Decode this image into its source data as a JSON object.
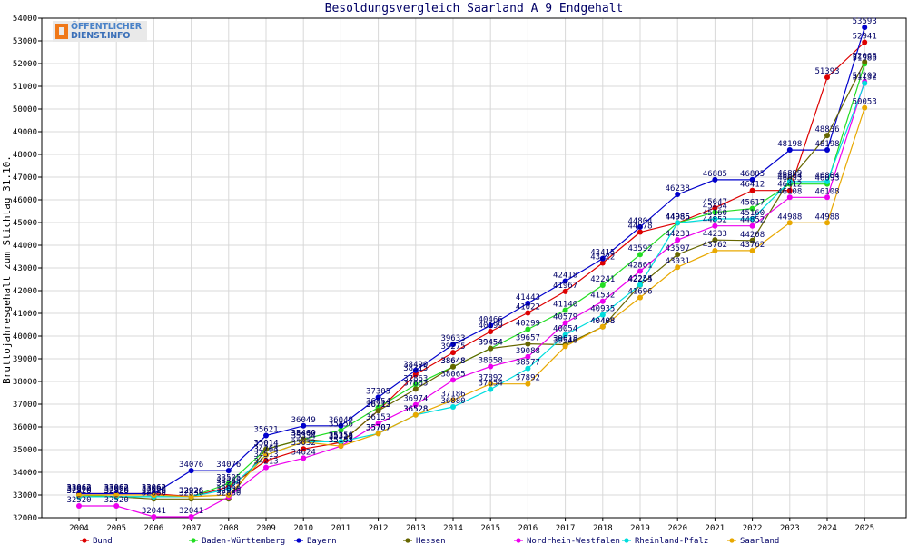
{
  "logo": {
    "line1": "ÖFFENTLICHER",
    "line2": "DIENST.INFO"
  },
  "chart_data": {
    "type": "line",
    "title": "Besoldungsvergleich Saarland A 9 Endgehalt",
    "xlabel": "",
    "ylabel": "Bruttojahresgehalt zum Stichtag 31.10.",
    "ylim": [
      32000,
      54000
    ],
    "ystep": 1000,
    "grid": true,
    "legend_position": "bottom",
    "x": [
      "2004",
      "2005",
      "2006",
      "2007",
      "2008",
      "2009",
      "2010",
      "2011",
      "2012",
      "2013",
      "2014",
      "2015",
      "2016",
      "2017",
      "2018",
      "2019",
      "2020",
      "2021",
      "2022",
      "2023",
      "2024",
      "2025"
    ],
    "series": [
      {
        "name": "Bund",
        "color": "#dd0000",
        "values": [
          33062,
          33062,
          33062,
          32926,
          33365,
          34513,
          35032,
          35313,
          36713,
          38315,
          39275,
          40199,
          41022,
          41967,
          43222,
          44578,
          44986,
          45647,
          46412,
          46412,
          51393,
          52941
        ]
      },
      {
        "name": "Baden-Württemberg",
        "color": "#22dd22",
        "values": [
          33000,
          32926,
          32926,
          32926,
          33505,
          35014,
          35460,
          35856,
          36854,
          37863,
          38648,
          39454,
          40299,
          41140,
          42241,
          43592,
          44986,
          45454,
          45617,
          46693,
          46693,
          51986
        ]
      },
      {
        "name": "Bayern",
        "color": "#0000cc",
        "values": [
          33062,
          33062,
          33062,
          34076,
          34076,
          35621,
          36049,
          36049,
          37305,
          38490,
          39633,
          40466,
          41443,
          42418,
          43415,
          44804,
          46238,
          46885,
          46885,
          48198,
          48198,
          53593
        ]
      },
      {
        "name": "Hessen",
        "color": "#666600",
        "values": [
          32926,
          32926,
          32830,
          32830,
          32830,
          35014,
          35460,
          35313,
          36713,
          37663,
          38648,
          39454,
          39657,
          39618,
          40408,
          42245,
          43597,
          44233,
          44208,
          46899,
          48836,
          52068
        ]
      },
      {
        "name": "Nordrhein-Westfalen",
        "color": "#ee00ee",
        "values": [
          32520,
          32520,
          32041,
          32041,
          32920,
          34213,
          34624,
          35153,
          36153,
          36974,
          38065,
          38658,
          39088,
          40579,
          41532,
          42861,
          44233,
          44852,
          44852,
          46108,
          46108,
          51202
        ]
      },
      {
        "name": "Rheinland-Pfalz",
        "color": "#00dddd",
        "values": [
          32926,
          32926,
          32926,
          32926,
          33264,
          34764,
          35334,
          35356,
          35707,
          36528,
          36880,
          37654,
          38577,
          40054,
          40935,
          42254,
          44986,
          45160,
          45160,
          46804,
          46804,
          51132
        ]
      },
      {
        "name": "Saarland",
        "color": "#e8a800",
        "values": [
          33000,
          33000,
          33000,
          32926,
          33000,
          34763,
          35334,
          35153,
          35707,
          36528,
          37186,
          37892,
          37892,
          39546,
          40408,
          41696,
          43031,
          43762,
          43762,
          44988,
          44988,
          50053
        ]
      }
    ]
  }
}
